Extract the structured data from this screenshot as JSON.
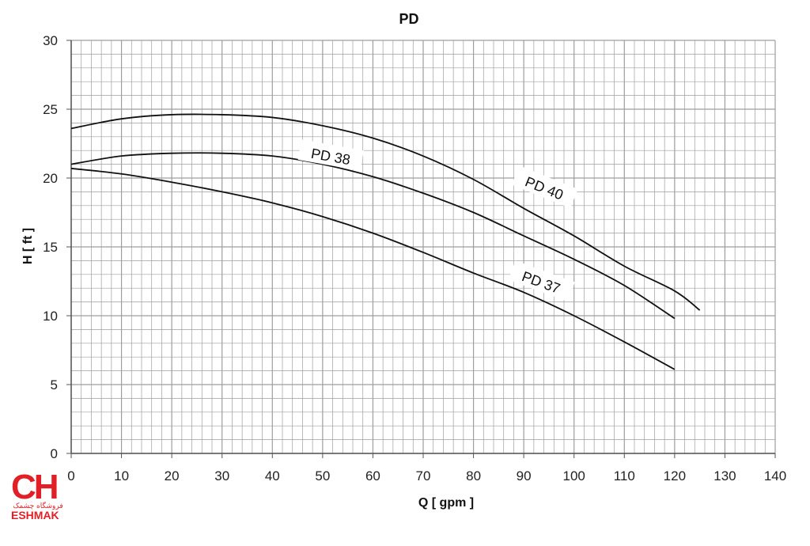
{
  "chart_data": {
    "type": "line",
    "title": "PD",
    "xlabel": "Q [ gpm ]",
    "ylabel": "H [ ft ]",
    "xlim": [
      0,
      140
    ],
    "ylim": [
      0,
      30
    ],
    "x_ticks": [
      "0",
      "10",
      "20",
      "30",
      "40",
      "50",
      "60",
      "70",
      "80",
      "90",
      "100",
      "110",
      "120",
      "130",
      "140"
    ],
    "y_ticks": [
      "0",
      "5",
      "10",
      "15",
      "20",
      "25",
      "30"
    ],
    "grid": true,
    "series": [
      {
        "name": "PD 40",
        "x": [
          0,
          10,
          20,
          30,
          40,
          50,
          60,
          70,
          80,
          90,
          100,
          110,
          120,
          125
        ],
        "y": [
          23.6,
          24.3,
          24.6,
          24.6,
          24.4,
          23.8,
          22.9,
          21.6,
          19.9,
          17.8,
          15.8,
          13.6,
          11.8,
          10.4
        ]
      },
      {
        "name": "PD 38",
        "x": [
          0,
          10,
          20,
          30,
          40,
          50,
          60,
          70,
          80,
          90,
          100,
          110,
          120
        ],
        "y": [
          21.0,
          21.6,
          21.8,
          21.8,
          21.6,
          21.0,
          20.1,
          18.9,
          17.5,
          15.8,
          14.1,
          12.2,
          9.8
        ]
      },
      {
        "name": "PD 37",
        "x": [
          0,
          10,
          20,
          30,
          40,
          50,
          60,
          70,
          80,
          90,
          100,
          110,
          120
        ],
        "y": [
          20.7,
          20.3,
          19.7,
          19.0,
          18.2,
          17.2,
          16.0,
          14.6,
          13.1,
          11.7,
          10.0,
          8.1,
          6.1
        ]
      }
    ]
  },
  "logo": {
    "mark": "CH",
    "subtitle": "فروشگاه چشمک",
    "wordmark": "ESHMAK",
    "color": "#e11f26"
  },
  "colors": {
    "line": "#111111",
    "grid": "#9e9e9e",
    "axis": "#555555"
  }
}
